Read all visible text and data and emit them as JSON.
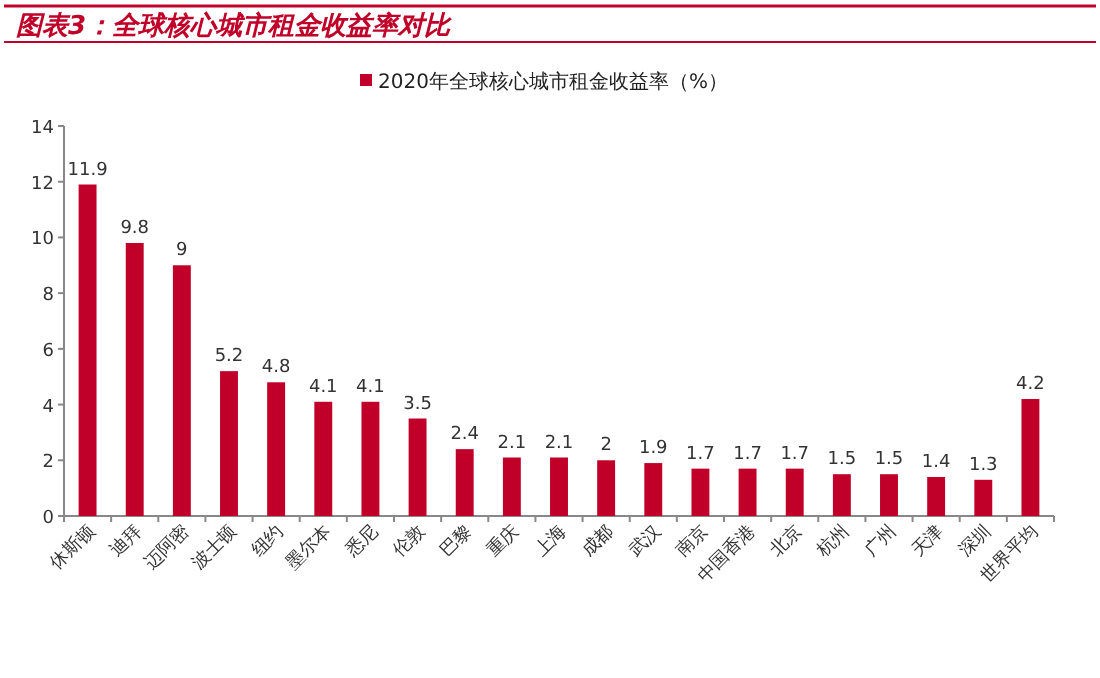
{
  "chart_data": {
    "type": "bar",
    "title": "图表3：全球核心城市租金收益率对比",
    "categories": [
      "休斯顿",
      "迪拜",
      "迈阿密",
      "波士顿",
      "纽约",
      "墨尔本",
      "悉尼",
      "伦敦",
      "巴黎",
      "重庆",
      "上海",
      "成都",
      "武汉",
      "南京",
      "中国香港",
      "北京",
      "杭州",
      "广州",
      "天津",
      "深圳",
      "世界平均"
    ],
    "series": [
      {
        "name": "2020年全球核心城市租金收益率（%）",
        "color": "#c00028",
        "values": [
          11.9,
          9.8,
          9,
          5.2,
          4.8,
          4.1,
          4.1,
          3.5,
          2.4,
          2.1,
          2.1,
          2,
          1.9,
          1.7,
          1.7,
          1.7,
          1.5,
          1.5,
          1.4,
          1.3,
          4.2
        ]
      }
    ],
    "ylim": [
      0,
      14
    ],
    "yticks": [
      0,
      2,
      4,
      6,
      8,
      10,
      12,
      14
    ],
    "data_labels": true,
    "legend": "top",
    "grid": false
  }
}
